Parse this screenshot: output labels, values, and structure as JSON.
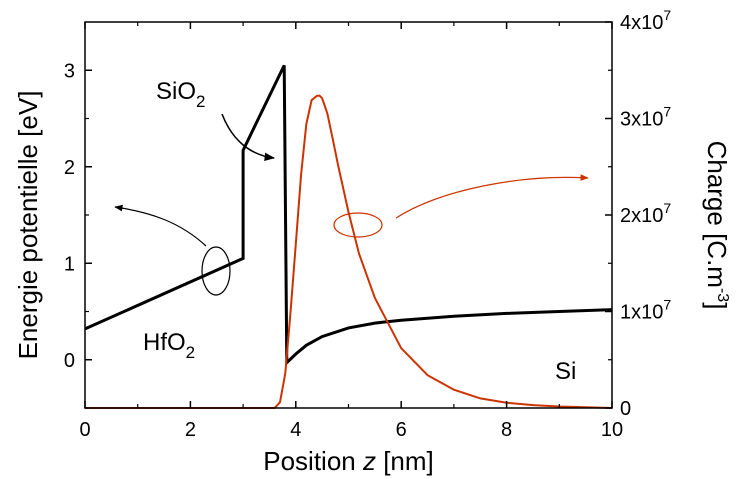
{
  "chart_data": {
    "type": "line",
    "xlabel": {
      "pre": "Position ",
      "var": "z",
      "post": " [nm]"
    },
    "ylabel_left": "Energie potentielle [eV]",
    "ylabel_right": {
      "main": "Charge [C.m",
      "sup": "-3",
      "close": "]"
    },
    "xlim": [
      0,
      10
    ],
    "ylim_left": [
      -0.5,
      3.5
    ],
    "ylim_right": [
      0,
      40000000
    ],
    "xticks": [
      "0",
      "2",
      "4",
      "6",
      "8",
      "10"
    ],
    "yticks_left": [
      "0",
      "1",
      "2",
      "3"
    ],
    "yticks_right": [
      {
        "base": "0",
        "exp": ""
      },
      {
        "base": "1x10",
        "exp": "7"
      },
      {
        "base": "2x10",
        "exp": "7"
      },
      {
        "base": "3x10",
        "exp": "7"
      },
      {
        "base": "4x10",
        "exp": "7"
      }
    ],
    "grid": false,
    "annotations": [
      {
        "base": "SiO",
        "sub": "2"
      },
      {
        "base": "HfO",
        "sub": "2"
      },
      {
        "base": "Si",
        "sub": ""
      }
    ],
    "series": [
      {
        "axis": "left",
        "color": "#000000",
        "x": [
          0,
          3.0,
          3.0,
          3.78,
          3.78,
          3.83,
          4.0,
          4.2,
          4.5,
          5.0,
          5.5,
          6.0,
          7.0,
          8.0,
          9.0,
          10.0
        ],
        "y": [
          0.32,
          1.05,
          2.17,
          3.05,
          3.05,
          -0.03,
          0.06,
          0.15,
          0.24,
          0.33,
          0.38,
          0.41,
          0.45,
          0.48,
          0.5,
          0.52
        ]
      },
      {
        "axis": "right",
        "color": "#cc3300",
        "x": [
          0,
          3.6,
          3.7,
          3.8,
          3.9,
          4.0,
          4.1,
          4.2,
          4.3,
          4.4,
          4.45,
          4.5,
          4.6,
          4.7,
          4.8,
          5.0,
          5.2,
          5.5,
          6.0,
          6.5,
          7.0,
          7.5,
          8.0,
          8.5,
          9.0,
          10.0
        ],
        "y": [
          0,
          0,
          600000,
          3600000,
          9900000,
          17000000,
          24200000,
          29400000,
          31900000,
          32350000,
          32370000,
          32100000,
          30500000,
          27900000,
          25200000,
          20300000,
          16000000,
          11400000,
          6200000,
          3400000,
          1900000,
          1000000,
          550000,
          300000,
          160000,
          0
        ]
      }
    ]
  }
}
